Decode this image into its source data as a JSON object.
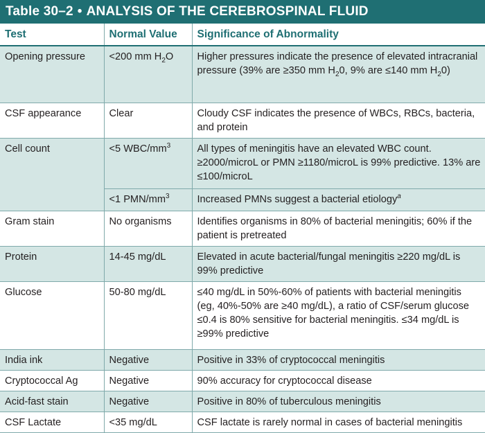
{
  "title": {
    "number": "Table 30–2",
    "separator": "•",
    "text": "ANALYSIS OF THE CEREBROSPINAL FLUID"
  },
  "colors": {
    "header": "#1f6f73",
    "shade": "#d4e6e4",
    "rule": "#7fa9aa"
  },
  "headers": {
    "test": "Test",
    "normal": "Normal Value",
    "significance": "Significance of Abnormality"
  },
  "rows": {
    "opening": {
      "test": "Opening pressure",
      "normal_a": "<200 mm H",
      "normal_sub": "2",
      "normal_b": "O",
      "sig_a": "Higher pressures indicate the presence of elevated intracranial pressure (39% are ≥350 mm H",
      "sig_sub1": "2",
      "sig_b": "0, 9% are ≤140 mm H",
      "sig_sub2": "2",
      "sig_c": "0)"
    },
    "appearance": {
      "test": "CSF appearance",
      "normal": "Clear",
      "sig": "Cloudy CSF indicates the presence of WBCs, RBCs, bacteria, and protein"
    },
    "cellcount": {
      "test": "Cell count",
      "normal1_a": "<5 WBC/mm",
      "normal1_sup": "3",
      "sig1": "All types of meningitis have an elevated WBC count. ≥2000/microL or PMN ≥1180/microL is 99% predictive. 13% are ≤100/microL",
      "normal2_a": "<1 PMN/mm",
      "normal2_sup": "3",
      "sig2_a": "Increased PMNs suggest a bacterial etiology",
      "sig2_sup": "a"
    },
    "gram": {
      "test": "Gram stain",
      "normal": "No organisms",
      "sig": "Identifies organisms in 80% of bacterial meningitis; 60% if the patient is pretreated"
    },
    "protein": {
      "test": "Protein",
      "normal": "14-45 mg/dL",
      "sig": "Elevated in acute bacterial/fungal meningitis ≥220 mg/dL is 99% predictive"
    },
    "glucose": {
      "test": "Glucose",
      "normal": "50-80 mg/dL",
      "sig": "≤40 mg/dL in 50%-60% of patients with bacterial meningitis (eg, 40%-50% are ≥40 mg/dL), a ratio of CSF/serum glucose ≤0.4 is 80% sensitive for bacterial meningitis. ≤34 mg/dL is ≥99% predictive"
    },
    "india": {
      "test": "India ink",
      "normal": "Negative",
      "sig": "Positive in 33% of cryptococcal meningitis"
    },
    "crypto": {
      "test": "Cryptococcal Ag",
      "normal": "Negative",
      "sig": "90% accuracy for cryptococcal disease"
    },
    "afb": {
      "test": "Acid-fast stain",
      "normal": "Negative",
      "sig": "Positive in 80% of tuberculous meningitis"
    },
    "lactate": {
      "test": "CSF Lactate",
      "normal": "<35 mg/dL",
      "sig": "CSF lactate is rarely normal in cases of bacterial meningitis"
    }
  }
}
